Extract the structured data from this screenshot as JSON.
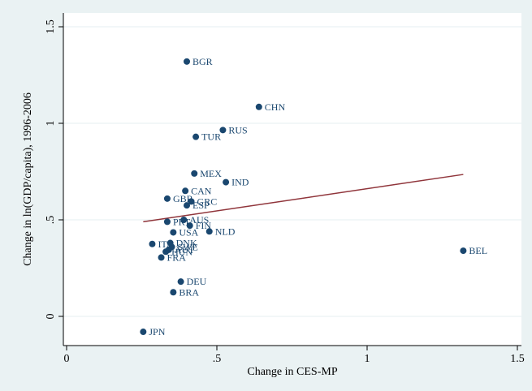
{
  "chart_data": {
    "type": "scatter",
    "xlabel": "Change in CES-MP",
    "ylabel": "Change in ln(GDP/capita), 1996-2006",
    "xlim": [
      0,
      1.5
    ],
    "ylim": [
      -0.1,
      1.5
    ],
    "x_ticks": [
      {
        "value": 0,
        "label": "0"
      },
      {
        "value": 0.5,
        "label": ".5"
      },
      {
        "value": 1,
        "label": "1"
      },
      {
        "value": 1.5,
        "label": "1.5"
      }
    ],
    "y_ticks": [
      {
        "value": 0,
        "label": "0"
      },
      {
        "value": 0.5,
        "label": ".5"
      },
      {
        "value": 1,
        "label": "1"
      },
      {
        "value": 1.5,
        "label": "1.5"
      }
    ],
    "grid": "horizontal",
    "points": [
      {
        "label": "BGR",
        "x": 0.4,
        "y": 1.32
      },
      {
        "label": "CHN",
        "x": 0.64,
        "y": 1.085
      },
      {
        "label": "RUS",
        "x": 0.52,
        "y": 0.965
      },
      {
        "label": "TUR",
        "x": 0.43,
        "y": 0.93
      },
      {
        "label": "MEX",
        "x": 0.425,
        "y": 0.74
      },
      {
        "label": "IND",
        "x": 0.53,
        "y": 0.695
      },
      {
        "label": "CAN",
        "x": 0.395,
        "y": 0.65
      },
      {
        "label": "GBR",
        "x": 0.335,
        "y": 0.61
      },
      {
        "label": "GRC",
        "x": 0.415,
        "y": 0.595
      },
      {
        "label": "ESP",
        "x": 0.4,
        "y": 0.575
      },
      {
        "label": "AUS",
        "x": 0.39,
        "y": 0.5
      },
      {
        "label": "PRT",
        "x": 0.335,
        "y": 0.49
      },
      {
        "label": "FIN",
        "x": 0.41,
        "y": 0.47
      },
      {
        "label": "USA",
        "x": 0.355,
        "y": 0.435
      },
      {
        "label": "NLD",
        "x": 0.475,
        "y": 0.44
      },
      {
        "label": "ITA",
        "x": 0.285,
        "y": 0.375
      },
      {
        "label": "DNK",
        "x": 0.345,
        "y": 0.38
      },
      {
        "label": "SWE",
        "x": 0.35,
        "y": 0.36
      },
      {
        "label": "AUT",
        "x": 0.34,
        "y": 0.345
      },
      {
        "label": "HUN",
        "x": 0.33,
        "y": 0.335
      },
      {
        "label": "FRA",
        "x": 0.315,
        "y": 0.305
      },
      {
        "label": "DEU",
        "x": 0.38,
        "y": 0.18
      },
      {
        "label": "BRA",
        "x": 0.355,
        "y": 0.125
      },
      {
        "label": "JPN",
        "x": 0.255,
        "y": -0.08
      },
      {
        "label": "BEL",
        "x": 1.32,
        "y": 0.34
      }
    ],
    "fit_line": {
      "x": [
        0.255,
        1.32
      ],
      "y": [
        0.49,
        0.735
      ]
    },
    "colors": {
      "points": "#1a476f",
      "fit_line": "#90353b",
      "background": "#eaf2f3",
      "plot_background": "#ffffff",
      "grid": "#eaf2f3"
    }
  }
}
